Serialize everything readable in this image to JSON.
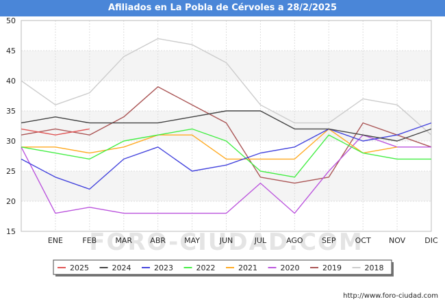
{
  "title": "Afiliados en La Pobla de Cérvoles a 28/2/2025",
  "source": "http://www.foro-ciudad.com",
  "watermark": "FORO-CIUDAD.COM",
  "chart_data": {
    "type": "line",
    "categories": [
      "ENE",
      "FEB",
      "MAR",
      "ABR",
      "MAY",
      "JUN",
      "JUL",
      "AGO",
      "SEP",
      "OCT",
      "NOV",
      "DIC"
    ],
    "ylim": [
      15,
      50
    ],
    "yticks": [
      15,
      20,
      25,
      30,
      35,
      40,
      45,
      50
    ],
    "grid": true,
    "legend_position": "bottom",
    "series": [
      {
        "name": "2025",
        "color": "#e05555",
        "values": [
          31,
          32,
          null,
          null,
          null,
          null,
          null,
          null,
          null,
          null,
          null,
          null
        ],
        "start": 32
      },
      {
        "name": "2024",
        "color": "#444444",
        "values": [
          34,
          33,
          33,
          33,
          34,
          35,
          35,
          32,
          32,
          31,
          30,
          32
        ],
        "start": 33
      },
      {
        "name": "2023",
        "color": "#4444dd",
        "values": [
          24,
          22,
          27,
          29,
          25,
          26,
          28,
          29,
          32,
          30,
          31,
          33
        ],
        "start": 27
      },
      {
        "name": "2022",
        "color": "#44ee44",
        "values": [
          28,
          27,
          30,
          31,
          32,
          30,
          25,
          24,
          31,
          28,
          27,
          27
        ],
        "start": 29
      },
      {
        "name": "2021",
        "color": "#ffaa22",
        "values": [
          29,
          28,
          29,
          31,
          31,
          27,
          27,
          27,
          32,
          28,
          29,
          null
        ],
        "start": 29
      },
      {
        "name": "2020",
        "color": "#bb55dd",
        "values": [
          18,
          19,
          18,
          18,
          18,
          18,
          23,
          18,
          25,
          31,
          29,
          29
        ],
        "start": 29
      },
      {
        "name": "2019",
        "color": "#aa5555",
        "values": [
          32,
          31,
          34,
          39,
          36,
          33,
          24,
          23,
          24,
          33,
          31,
          29
        ],
        "start": 31
      },
      {
        "name": "2018",
        "color": "#cccccc",
        "values": [
          36,
          38,
          44,
          47,
          46,
          43,
          36,
          33,
          33,
          37,
          36,
          31
        ],
        "start": 40
      }
    ]
  }
}
